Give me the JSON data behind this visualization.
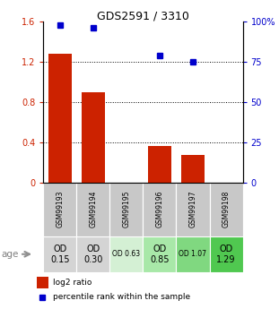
{
  "title": "GDS2591 / 3310",
  "samples": [
    "GSM99193",
    "GSM99194",
    "GSM99195",
    "GSM99196",
    "GSM99197",
    "GSM99198"
  ],
  "log2_ratio": [
    1.28,
    0.9,
    0.0,
    0.36,
    0.27,
    0.0
  ],
  "percentile_rank": [
    98,
    96,
    0,
    79,
    75,
    0
  ],
  "percentile_rank_has_point": [
    true,
    true,
    false,
    true,
    true,
    false
  ],
  "bar_color": "#cc2200",
  "point_color": "#0000cc",
  "ylim_left": [
    0,
    1.6
  ],
  "ylim_right": [
    0,
    100
  ],
  "yticks_left": [
    0,
    0.4,
    0.8,
    1.2,
    1.6
  ],
  "yticks_right": [
    0,
    25,
    50,
    75,
    100
  ],
  "ytick_labels_left": [
    "0",
    "0.4",
    "0.8",
    "1.2",
    "1.6"
  ],
  "ytick_labels_right": [
    "0",
    "25",
    "50",
    "75",
    "100%"
  ],
  "hlines": [
    0.4,
    0.8,
    1.2
  ],
  "age_label": "age",
  "age_row_labels": [
    "OD\n0.15",
    "OD\n0.30",
    "OD 0.63",
    "OD\n0.85",
    "OD 1.07",
    "OD\n1.29"
  ],
  "age_row_colors": [
    "#d4d4d4",
    "#d4d4d4",
    "#d4f0d4",
    "#a8e8a8",
    "#80d880",
    "#50c850"
  ],
  "age_row_fontsize_small": [
    false,
    false,
    true,
    false,
    true,
    false
  ],
  "legend_bar_label": "log2 ratio",
  "legend_point_label": "percentile rank within the sample",
  "bar_color_left_axis": "#cc2200",
  "point_color_right_axis": "#0000cc",
  "bg_color": "#ffffff",
  "bar_width": 0.7,
  "sample_name_bg": "#c8c8c8"
}
